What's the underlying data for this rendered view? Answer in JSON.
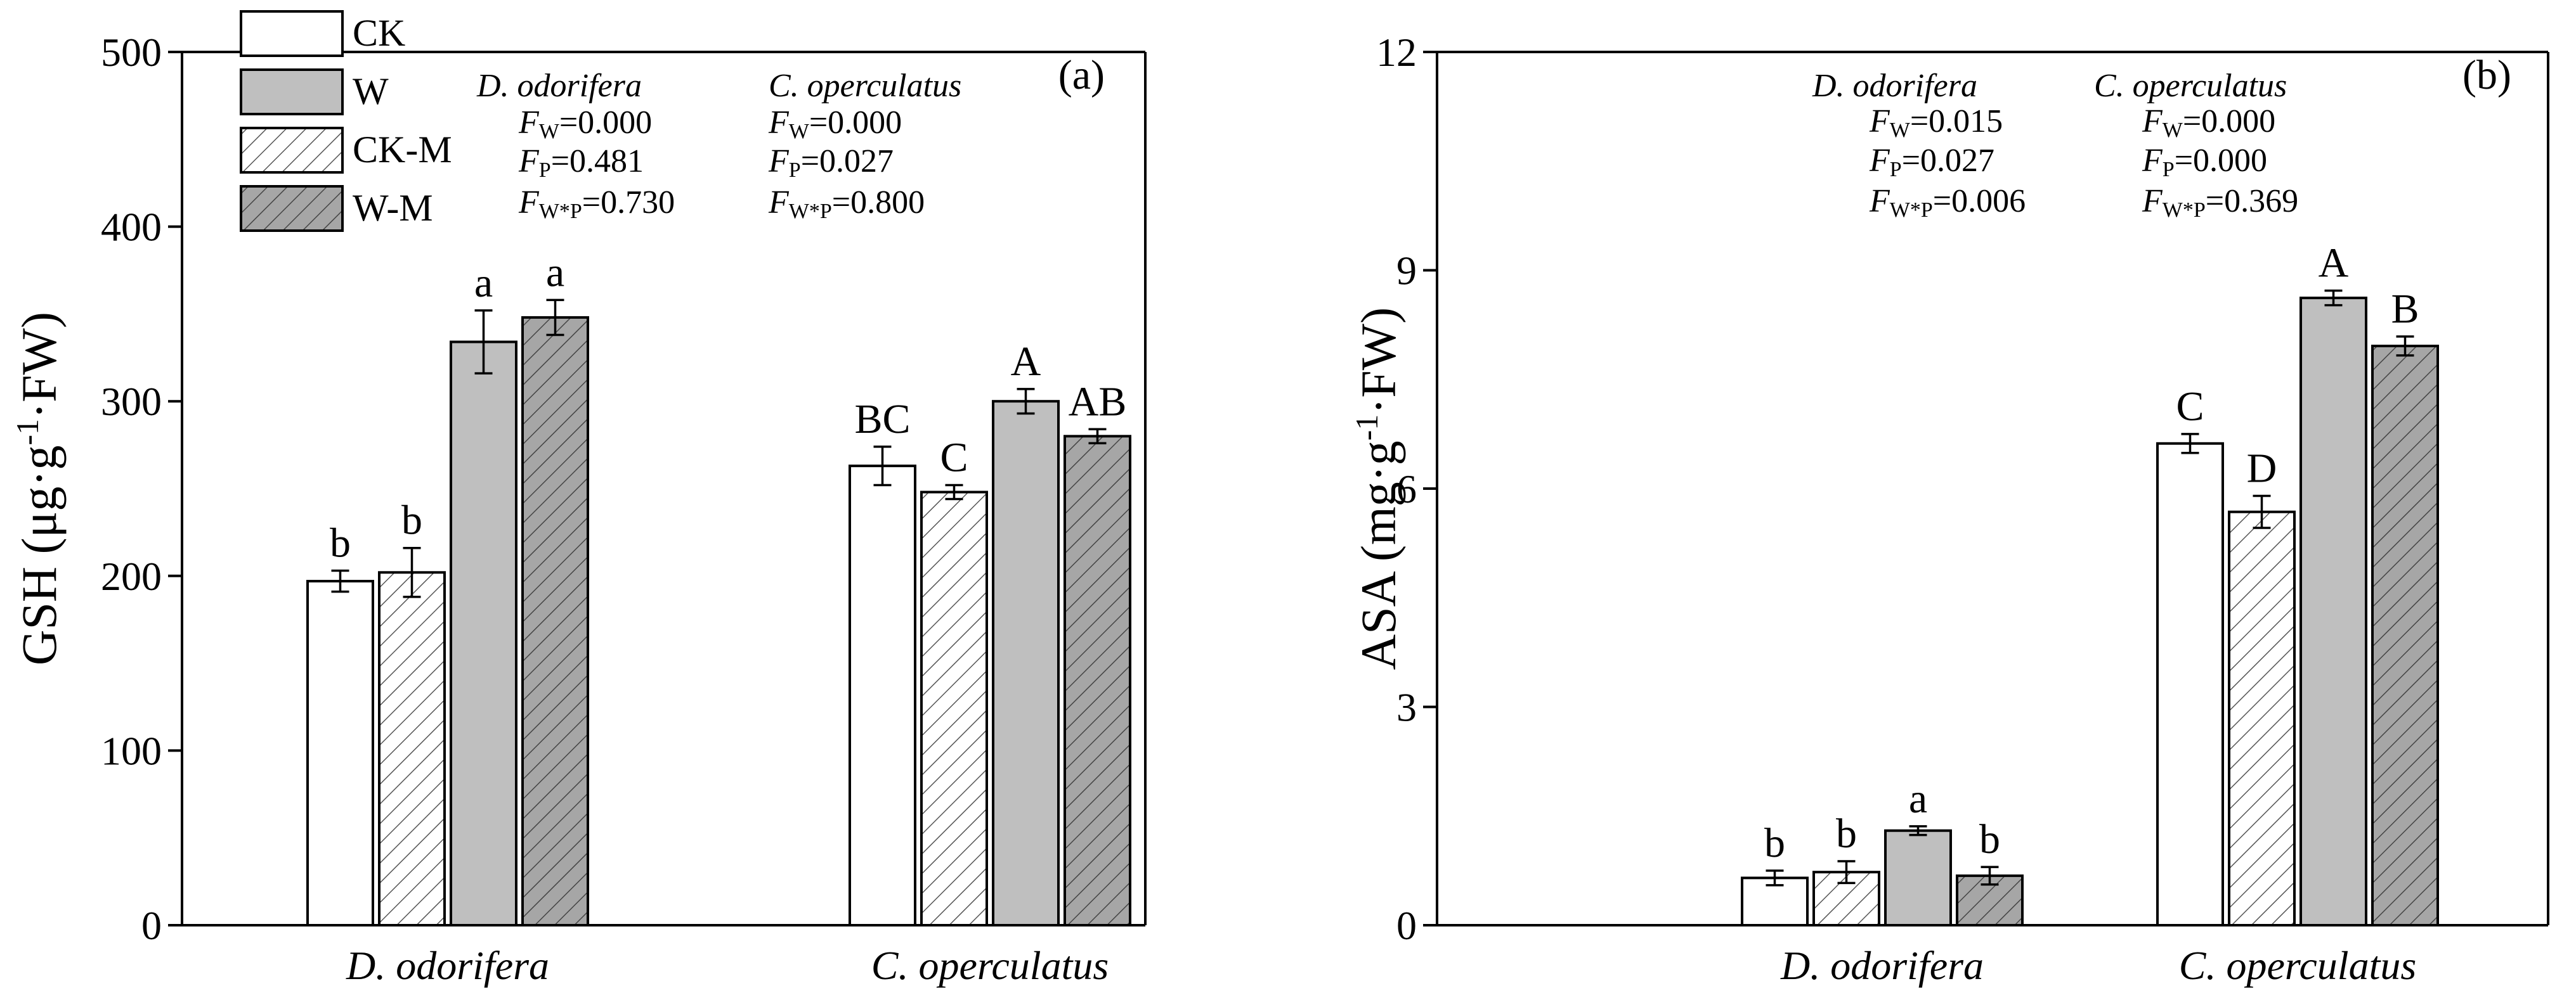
{
  "legend": [
    {
      "key": "CK",
      "label": "CK"
    },
    {
      "key": "W",
      "label": "W"
    },
    {
      "key": "CKM",
      "label": "CK-M"
    },
    {
      "key": "WM",
      "label": "W-M"
    }
  ],
  "colors": {
    "W": "#bfbfbf",
    "WM": "#a6a6a6",
    "CK": "#ffffff",
    "CKM": "#ffffff",
    "axis": "#000000"
  },
  "chart_data": [
    {
      "type": "bar",
      "panel_label": "(a)",
      "ylabel_main": "GSH (μg·g",
      "ylabel_sup": "-1",
      "ylabel_tail": "·FW)",
      "ylim": [
        0,
        500
      ],
      "yticks": [
        "0",
        "100",
        "200",
        "300",
        "400",
        "500"
      ],
      "categories": [
        "D. odorifera",
        "C. operculatus"
      ],
      "series": [
        {
          "key": "CK",
          "name": "CK",
          "values": [
            197,
            263
          ],
          "errors": [
            6,
            11
          ],
          "letters": [
            "b",
            "BC"
          ]
        },
        {
          "key": "CKM",
          "name": "CK-M",
          "values": [
            202,
            248
          ],
          "errors": [
            14,
            4
          ],
          "letters": [
            "b",
            "C"
          ]
        },
        {
          "key": "W",
          "name": "W",
          "values": [
            334,
            300
          ],
          "errors": [
            18,
            7
          ],
          "letters": [
            "a",
            "A"
          ]
        },
        {
          "key": "WM",
          "name": "W-M",
          "values": [
            348,
            280
          ],
          "errors": [
            10,
            4
          ],
          "letters": [
            "a",
            "AB"
          ]
        }
      ],
      "stats": {
        "species": [
          "D. odorifera",
          "C. operculatus"
        ],
        "rows": [
          {
            "sym": "F",
            "sub": "W",
            "values": [
              "=0.000",
              "=0.000"
            ]
          },
          {
            "sym": "F",
            "sub": "P",
            "values": [
              "=0.481",
              "=0.027"
            ]
          },
          {
            "sym": "F",
            "sub": "W*P",
            "values": [
              "=0.730",
              "=0.800"
            ]
          }
        ]
      }
    },
    {
      "type": "bar",
      "panel_label": "(b)",
      "ylabel_main": "ASA (mg·g",
      "ylabel_sup": "-1",
      "ylabel_tail": "·FW)",
      "ylim": [
        0,
        12
      ],
      "yticks": [
        "0",
        "3",
        "6",
        "9",
        "12"
      ],
      "categories": [
        "D. odorifera",
        "C. operculatus"
      ],
      "series": [
        {
          "key": "CK",
          "name": "CK",
          "values": [
            0.65,
            6.62
          ],
          "errors": [
            0.1,
            0.13
          ],
          "letters": [
            "b",
            "C"
          ]
        },
        {
          "key": "CKM",
          "name": "CK-M",
          "values": [
            0.73,
            5.68
          ],
          "errors": [
            0.15,
            0.22
          ],
          "letters": [
            "b",
            "D"
          ]
        },
        {
          "key": "W",
          "name": "W",
          "values": [
            1.3,
            8.62
          ],
          "errors": [
            0.06,
            0.1
          ],
          "letters": [
            "a",
            "A"
          ]
        },
        {
          "key": "WM",
          "name": "W-M",
          "values": [
            0.68,
            7.96
          ],
          "errors": [
            0.12,
            0.13
          ],
          "letters": [
            "b",
            "B"
          ]
        }
      ],
      "stats": {
        "species": [
          "D. odorifera",
          "C. operculatus"
        ],
        "rows": [
          {
            "sym": "F",
            "sub": "W",
            "values": [
              "=0.015",
              "=0.000"
            ]
          },
          {
            "sym": "F",
            "sub": "P",
            "values": [
              "=0.027",
              "=0.000"
            ]
          },
          {
            "sym": "F",
            "sub": "W*P",
            "values": [
              "=0.006",
              "=0.369"
            ]
          }
        ]
      }
    }
  ]
}
